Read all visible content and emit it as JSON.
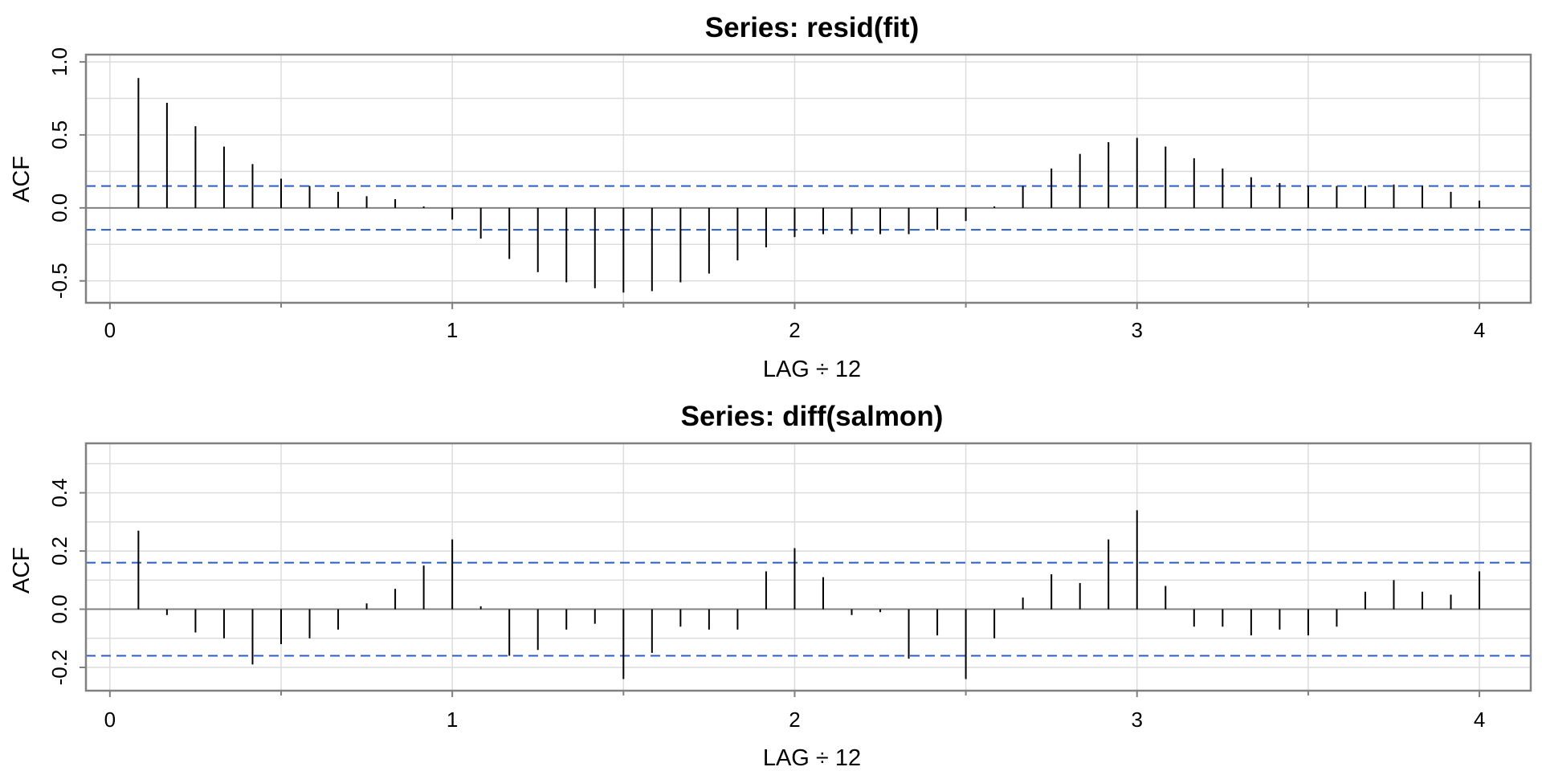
{
  "chart_data": [
    {
      "type": "bar",
      "title": "Series:  resid(fit)",
      "xlabel": "LAG ÷ 12",
      "ylabel": "ACF",
      "xlim": [
        -0.07,
        4.15
      ],
      "ylim": [
        -0.65,
        1.05
      ],
      "xticks": [
        0,
        1,
        2,
        3,
        4
      ],
      "xticklabels": [
        "0",
        "1",
        "2",
        "3",
        "4"
      ],
      "yticks": [
        -0.5,
        0.0,
        0.5,
        1.0
      ],
      "yticklabels": [
        "-0.5",
        "0.0",
        "0.5",
        "1.0"
      ],
      "grid": true,
      "confidence_bound": 0.15,
      "lag_step": 0.08333333,
      "x": [
        1,
        2,
        3,
        4,
        5,
        6,
        7,
        8,
        9,
        10,
        11,
        12,
        13,
        14,
        15,
        16,
        17,
        18,
        19,
        20,
        21,
        22,
        23,
        24,
        25,
        26,
        27,
        28,
        29,
        30,
        31,
        32,
        33,
        34,
        35,
        36,
        37,
        38,
        39,
        40,
        41,
        42,
        43,
        44,
        45,
        46,
        47,
        48
      ],
      "values": [
        0.89,
        0.72,
        0.56,
        0.42,
        0.3,
        0.2,
        0.15,
        0.11,
        0.08,
        0.06,
        0.01,
        -0.08,
        -0.21,
        -0.35,
        -0.44,
        -0.51,
        -0.55,
        -0.58,
        -0.57,
        -0.51,
        -0.45,
        -0.36,
        -0.27,
        -0.2,
        -0.18,
        -0.18,
        -0.18,
        -0.18,
        -0.15,
        -0.09,
        0.01,
        0.15,
        0.27,
        0.37,
        0.45,
        0.48,
        0.42,
        0.34,
        0.27,
        0.21,
        0.17,
        0.15,
        0.15,
        0.15,
        0.16,
        0.15,
        0.11,
        0.05
      ]
    },
    {
      "type": "bar",
      "title": "Series:  diff(salmon)",
      "xlabel": "LAG ÷ 12",
      "ylabel": "ACF",
      "xlim": [
        -0.07,
        4.15
      ],
      "ylim": [
        -0.28,
        0.57
      ],
      "xticks": [
        0,
        1,
        2,
        3,
        4
      ],
      "xticklabels": [
        "0",
        "1",
        "2",
        "3",
        "4"
      ],
      "yticks": [
        -0.2,
        0.0,
        0.2,
        0.4
      ],
      "yticklabels": [
        "-0.2",
        "0.0",
        "0.2",
        "0.4"
      ],
      "grid": true,
      "confidence_bound": 0.16,
      "lag_step": 0.08333333,
      "x": [
        1,
        2,
        3,
        4,
        5,
        6,
        7,
        8,
        9,
        10,
        11,
        12,
        13,
        14,
        15,
        16,
        17,
        18,
        19,
        20,
        21,
        22,
        23,
        24,
        25,
        26,
        27,
        28,
        29,
        30,
        31,
        32,
        33,
        34,
        35,
        36,
        37,
        38,
        39,
        40,
        41,
        42,
        43,
        44,
        45,
        46,
        47,
        48
      ],
      "values": [
        0.27,
        -0.02,
        -0.08,
        -0.1,
        -0.19,
        -0.12,
        -0.1,
        -0.07,
        0.02,
        0.07,
        0.15,
        0.24,
        0.01,
        -0.16,
        -0.14,
        -0.07,
        -0.05,
        -0.24,
        -0.15,
        -0.06,
        -0.07,
        -0.07,
        0.13,
        0.21,
        0.11,
        -0.02,
        -0.01,
        -0.17,
        -0.09,
        -0.24,
        -0.1,
        0.04,
        0.12,
        0.09,
        0.24,
        0.34,
        0.08,
        -0.06,
        -0.06,
        -0.09,
        -0.07,
        -0.09,
        -0.06,
        0.06,
        0.1,
        0.06,
        0.05,
        0.13
      ]
    }
  ]
}
